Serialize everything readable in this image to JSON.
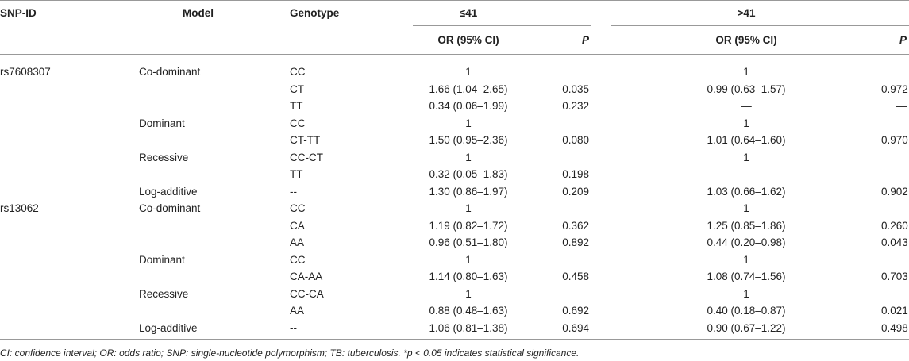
{
  "header": {
    "columns": [
      "SNP-ID",
      "Model",
      "Genotype"
    ],
    "groups": [
      "≤41",
      ">41"
    ],
    "subcolumns": [
      "OR (95% CI)",
      "P",
      "OR (95% CI)",
      "P"
    ]
  },
  "table": {
    "rows": [
      [
        "rs7608307",
        "Co-dominant",
        "CC",
        "1",
        null,
        "1",
        null
      ],
      [
        null,
        null,
        "CT",
        "1.66 (1.04–2.65)",
        "0.035",
        "0.99 (0.63–1.57)",
        "0.972"
      ],
      [
        null,
        null,
        "TT",
        "0.34 (0.06–1.99)",
        "0.232",
        "—",
        "—"
      ],
      [
        null,
        "Dominant",
        "CC",
        "1",
        null,
        "1",
        null
      ],
      [
        null,
        null,
        "CT-TT",
        "1.50 (0.95–2.36)",
        "0.080",
        "1.01 (0.64–1.60)",
        "0.970"
      ],
      [
        null,
        "Recessive",
        "CC-CT",
        "1",
        null,
        "1",
        null
      ],
      [
        null,
        null,
        "TT",
        "0.32 (0.05–1.83)",
        "0.198",
        "—",
        "—"
      ],
      [
        null,
        "Log-additive",
        "--",
        "1.30 (0.86–1.97)",
        "0.209",
        "1.03 (0.66–1.62)",
        "0.902"
      ],
      [
        "rs13062",
        "Co-dominant",
        "CC",
        "1",
        null,
        "1",
        null
      ],
      [
        null,
        null,
        "CA",
        "1.19 (0.82–1.72)",
        "0.362",
        "1.25 (0.85–1.86)",
        "0.260"
      ],
      [
        null,
        null,
        "AA",
        "0.96 (0.51–1.80)",
        "0.892",
        "0.44 (0.20–0.98)",
        "0.043"
      ],
      [
        null,
        "Dominant",
        "CC",
        "1",
        null,
        "1",
        null
      ],
      [
        null,
        null,
        "CA-AA",
        "1.14 (0.80–1.63)",
        "0.458",
        "1.08 (0.74–1.56)",
        "0.703"
      ],
      [
        null,
        "Recessive",
        "CC-CA",
        "1",
        null,
        "1",
        null
      ],
      [
        null,
        null,
        "AA",
        "0.88 (0.48–1.63)",
        "0.692",
        "0.40 (0.18–0.87)",
        "0.021"
      ],
      [
        null,
        "Log-additive",
        "--",
        "1.06 (0.81–1.38)",
        "0.694",
        "0.90 (0.67–1.22)",
        "0.498"
      ]
    ]
  },
  "footnote": "CI: confidence interval; OR: odds ratio; SNP: single-nucleotide polymorphism; TB: tuberculosis. *p < 0.05 indicates statistical significance."
}
